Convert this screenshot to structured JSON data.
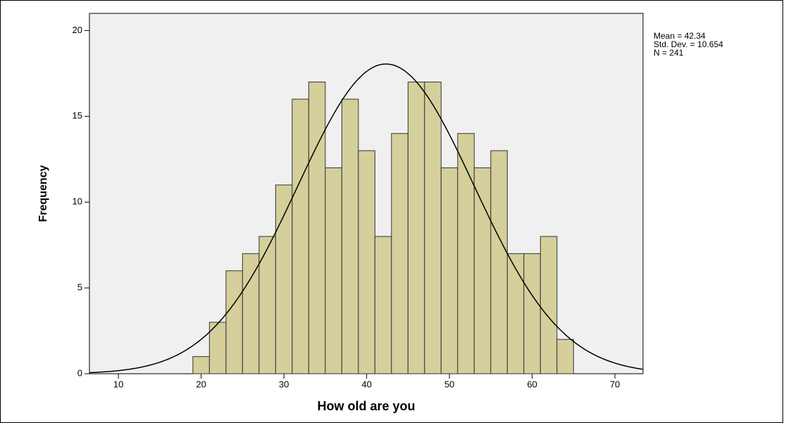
{
  "chart_data": {
    "type": "histogram",
    "bins": [
      19,
      21,
      23,
      25,
      27,
      29,
      31,
      33,
      35,
      37,
      39,
      41,
      43,
      45,
      47,
      49,
      51,
      53,
      55,
      57,
      59,
      61,
      63,
      65
    ],
    "values": [
      1,
      3,
      6,
      7,
      8,
      11,
      16,
      17,
      12,
      16,
      13,
      8,
      14,
      17,
      17,
      12,
      14,
      12,
      13,
      7,
      7,
      8,
      2
    ],
    "color": "#d4cf9b",
    "xlabel": "How old are you",
    "ylabel": "Frequency",
    "xlim": [
      6.5,
      73.4
    ],
    "ylim": [
      0,
      21
    ],
    "xticks": [
      10,
      20,
      30,
      40,
      50,
      60,
      70
    ],
    "yticks": [
      0,
      5,
      10,
      15,
      20
    ],
    "stats": [
      {
        "value": 42.34,
        "label": "Mean = 42.34"
      },
      {
        "value": 10.654,
        "label": "Std. Dev. = 10.654"
      },
      {
        "value": 241,
        "label": "N = 241"
      }
    ]
  }
}
